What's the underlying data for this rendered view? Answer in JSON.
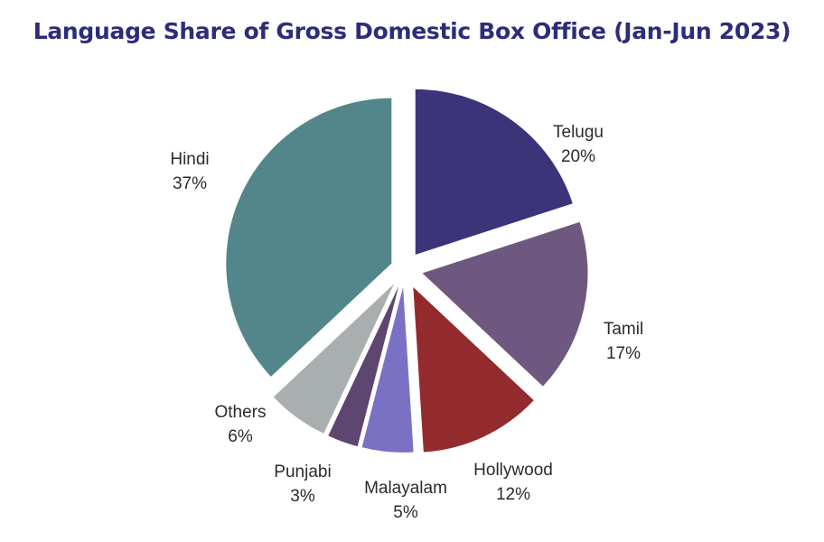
{
  "chart_data": {
    "type": "pie",
    "title": "Language Share of Gross Domestic Box Office (Jan-Jun 2023)",
    "slices": [
      {
        "name": "Telugu",
        "value": 20,
        "label": "20%",
        "color": "#3b3479"
      },
      {
        "name": "Tamil",
        "value": 17,
        "label": "17%",
        "color": "#6e587f"
      },
      {
        "name": "Hollywood",
        "value": 12,
        "label": "12%",
        "color": "#932b2e"
      },
      {
        "name": "Malayalam",
        "value": 5,
        "label": "5%",
        "color": "#7b71c4"
      },
      {
        "name": "Punjabi",
        "value": 3,
        "label": "3%",
        "color": "#5d4670"
      },
      {
        "name": "Others",
        "value": 6,
        "label": "6%",
        "color": "#a9aeae"
      },
      {
        "name": "Hindi",
        "value": 37,
        "label": "37%",
        "color": "#52868a"
      }
    ]
  }
}
